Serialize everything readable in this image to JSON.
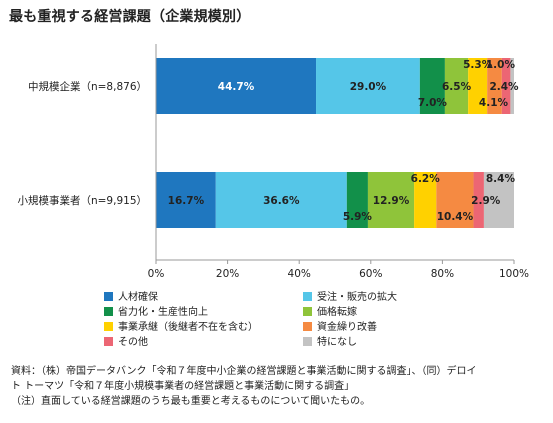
{
  "chart_data": {
    "type": "bar",
    "orientation": "horizontal",
    "stacked": true,
    "title": "最も重視する経営課題（企業規模別）",
    "categories": [
      "中規模企業（n=8,876）",
      "小規模事業者（n=9,915）"
    ],
    "xlim": [
      0,
      100
    ],
    "x_ticks": [
      "0%",
      "20%",
      "40%",
      "60%",
      "80%",
      "100%"
    ],
    "grid": false,
    "legend_position": "bottom",
    "series": [
      {
        "name": "人材確保",
        "color": "#1f77bf",
        "values": [
          44.7,
          16.7
        ],
        "labels": [
          "44.7%",
          "16.7%"
        ]
      },
      {
        "name": "受注・販売の拡大",
        "color": "#55c6e8",
        "values": [
          29.0,
          36.6
        ],
        "labels": [
          "29.0%",
          "36.6%"
        ]
      },
      {
        "name": "省力化・生産性向上",
        "color": "#12904a",
        "values": [
          7.0,
          5.9
        ],
        "labels": [
          "7.0%",
          "5.9%"
        ]
      },
      {
        "name": "価格転嫁",
        "color": "#8fc43a",
        "values": [
          6.5,
          12.9
        ],
        "labels": [
          "6.5%",
          "12.9%"
        ]
      },
      {
        "name": "事業承継（後継者不在を含む）",
        "color": "#ffd100",
        "values": [
          5.3,
          6.2
        ],
        "labels": [
          "5.3%",
          "6.2%"
        ]
      },
      {
        "name": "資金繰り改善",
        "color": "#f58a42",
        "values": [
          4.1,
          10.4
        ],
        "labels": [
          "4.1%",
          "10.4%"
        ]
      },
      {
        "name": "その他",
        "color": "#ec6674",
        "values": [
          2.4,
          2.9
        ],
        "labels": [
          "2.4%",
          "2.9%"
        ]
      },
      {
        "name": "特になし",
        "color": "#c3c3c3",
        "values": [
          1.0,
          8.4
        ],
        "labels": [
          "1.0%",
          "8.4%"
        ]
      }
    ]
  },
  "notes": {
    "source_line1": "資料：（株）帝国データバンク「令和７年度中小企業の経営課題と事業活動に関する調査」、（同）デロイ",
    "source_line2": "ト トーマツ「令和７年度小規模事業者の経営課題と事業活動に関する調査」",
    "note_line": "（注）直面している経営課題のうち最も重要と考えるものについて聞いたもの。"
  }
}
